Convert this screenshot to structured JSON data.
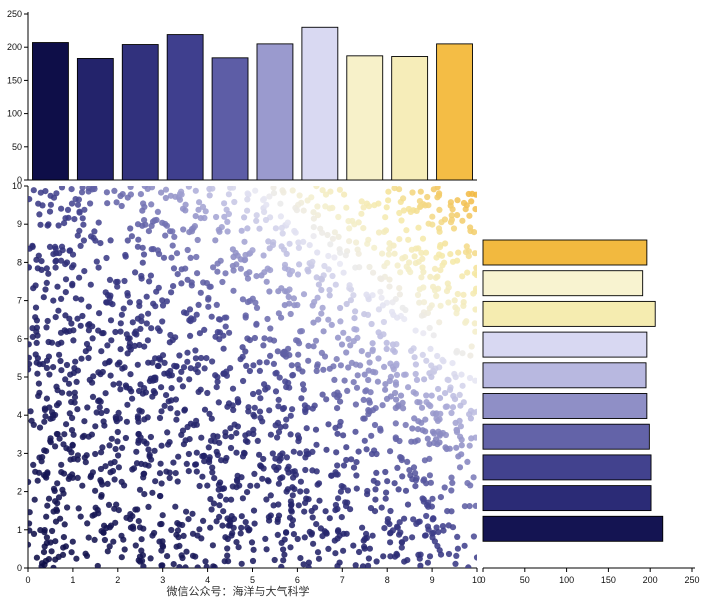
{
  "caption": "微信公众号：海洋与大气科学",
  "chart_data": [
    {
      "id": "top_histogram",
      "type": "bar",
      "orientation": "vertical",
      "title": "",
      "xlabel": "",
      "ylabel": "",
      "categories": [
        0.5,
        1.5,
        2.5,
        3.5,
        4.5,
        5.5,
        6.5,
        7.5,
        8.5,
        9.5
      ],
      "values": [
        207,
        183,
        204,
        219,
        184,
        205,
        230,
        187,
        186,
        205
      ],
      "bar_colors": [
        "#0e0e48",
        "#23236b",
        "#31317d",
        "#3f3f8e",
        "#5d5da6",
        "#9a9ace",
        "#d9d9f2",
        "#f7f1c9",
        "#f6edb9",
        "#f4bd45"
      ],
      "bar_edge_color": "#000000",
      "y_ticks": [
        0,
        50,
        100,
        150,
        200,
        250
      ],
      "ylim": [
        0,
        250
      ],
      "xlim": [
        0,
        10
      ],
      "grid": false
    },
    {
      "id": "scatter",
      "type": "scatter",
      "title": "",
      "xlabel": "",
      "ylabel": "",
      "n_points": 2000,
      "x_range": [
        0,
        10
      ],
      "y_range": [
        0,
        10
      ],
      "distribution": "uniform",
      "seed": 11,
      "point_radius": 3.1,
      "point_opacity": 0.88,
      "color_by": "x_plus_y_normalized",
      "color_stops": [
        {
          "t": 0.0,
          "c": "#0d0d45"
        },
        {
          "t": 0.4,
          "c": "#26266e"
        },
        {
          "t": 0.52,
          "c": "#42428e"
        },
        {
          "t": 0.6,
          "c": "#7171b2"
        },
        {
          "t": 0.68,
          "c": "#adadd9"
        },
        {
          "t": 0.745,
          "c": "#e8e8f4"
        },
        {
          "t": 0.8,
          "c": "#f4efcf"
        },
        {
          "t": 0.88,
          "c": "#f5e8a6"
        },
        {
          "t": 1.0,
          "c": "#f1b234"
        }
      ],
      "x_ticks": [
        0,
        1,
        2,
        3,
        4,
        5,
        6,
        7,
        8,
        9,
        10
      ],
      "y_ticks": [
        0,
        1,
        2,
        3,
        4,
        5,
        6,
        7,
        8,
        9,
        10
      ],
      "grid": false
    },
    {
      "id": "right_histogram",
      "type": "bar",
      "orientation": "horizontal",
      "title": "",
      "xlabel": "",
      "ylabel": "",
      "categories_top_to_bottom": [
        9.5,
        8.5,
        7.5,
        6.5,
        5.5,
        4.5,
        3.5,
        2.5,
        1.5,
        0.5
      ],
      "values_top_to_bottom": [
        196,
        191,
        206,
        196,
        195,
        196,
        199,
        201,
        201,
        215
      ],
      "bar_colors_top_to_bottom": [
        "#f2b93f",
        "#f8f3d0",
        "#f5ecb0",
        "#d8d8f2",
        "#b8b8e0",
        "#8f8fc6",
        "#6363a8",
        "#42428e",
        "#2b2b76",
        "#141452"
      ],
      "bar_edge_color": "#000000",
      "x_ticks": [
        0,
        50,
        100,
        150,
        200,
        250
      ],
      "xlim": [
        0,
        250
      ],
      "grid": false
    }
  ]
}
